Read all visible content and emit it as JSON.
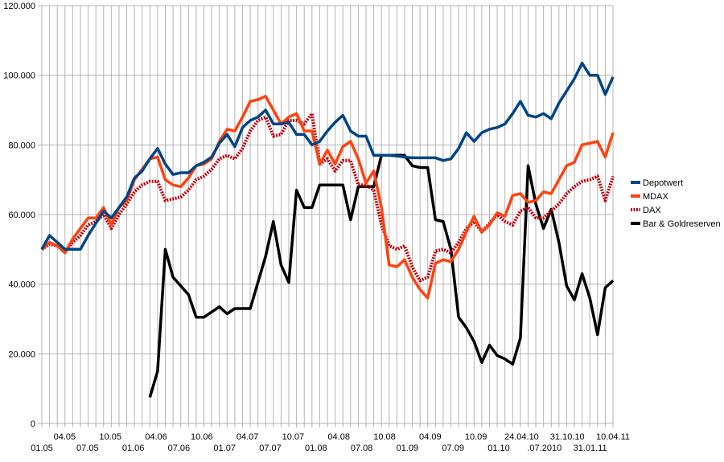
{
  "chart_data": {
    "type": "line",
    "title": "",
    "xlabel": "",
    "ylabel": "",
    "ylim": [
      0,
      120000
    ],
    "yticks": [
      0,
      20000,
      40000,
      60000,
      80000,
      100000,
      120000
    ],
    "ytick_labels": [
      "0",
      "20.000",
      "40.000",
      "60.000",
      "80.000",
      "100.000",
      "120.000"
    ],
    "grid": true,
    "legend_position": "right",
    "n_points": 75,
    "x_labels_upper": [
      "04.05",
      "10.05",
      "04.06",
      "10.06",
      "04.07",
      "10.07",
      "04.08",
      "10.08",
      "04.09",
      "10.09",
      "24.04.10",
      "31.10.10",
      "10.04.11"
    ],
    "x_labels_lower": [
      "01.05",
      "07.05",
      "01.06",
      "07.06",
      "01.07",
      "07.07",
      "01.08",
      "07.08",
      "01.09",
      "07.09",
      "01.10",
      ".07.2010",
      "31.01.11"
    ],
    "series": [
      {
        "name": "Depotwert",
        "color": "#004586",
        "dashed": false,
        "values": [
          50000,
          54000,
          52000,
          50000,
          50000,
          50000,
          54000,
          57500,
          61000,
          59000,
          62000,
          65000,
          70500,
          72500,
          76000,
          79000,
          74500,
          71500,
          72000,
          72000,
          74000,
          75000,
          76500,
          80500,
          83000,
          79500,
          85000,
          87000,
          88000,
          90000,
          86000,
          86000,
          86500,
          83000,
          83000,
          80000,
          81000,
          84000,
          86500,
          88500,
          84000,
          82500,
          82500,
          77000,
          77000,
          77000,
          76800,
          76500,
          76300,
          76300,
          76300,
          76300,
          75500,
          76000,
          79000,
          83500,
          81000,
          83500,
          84500,
          85000,
          86000,
          89000,
          92500,
          88500,
          88000,
          89000,
          87500,
          92000,
          95500,
          99000,
          103500,
          100000,
          100000,
          94500,
          99500
        ]
      },
      {
        "name": "MDAX",
        "color": "#ff420e",
        "dashed": false,
        "values": [
          50000,
          52000,
          51000,
          49000,
          53000,
          56000,
          59000,
          59000,
          62000,
          57000,
          62000,
          64000,
          70000,
          73000,
          76000,
          76500,
          70000,
          68500,
          68000,
          70500,
          74000,
          74500,
          76000,
          81000,
          84500,
          84000,
          88000,
          92500,
          93000,
          94000,
          90000,
          86000,
          88000,
          89000,
          84000,
          84000,
          74500,
          78500,
          74500,
          79500,
          81000,
          76000,
          69000,
          72500,
          62000,
          45500,
          45000,
          47000,
          42000,
          38500,
          36000,
          46000,
          47000,
          46500,
          50000,
          55000,
          59500,
          55000,
          57000,
          60500,
          59500,
          65500,
          66000,
          63500,
          64000,
          66500,
          66000,
          70000,
          74000,
          75000,
          80000,
          80500,
          81000,
          76500,
          83500
        ]
      },
      {
        "name": "DAX",
        "color": "#c5000b",
        "dashed": true,
        "values": [
          50000,
          51500,
          51000,
          49500,
          52000,
          54000,
          57000,
          58000,
          60000,
          56000,
          60000,
          63000,
          66500,
          68500,
          69500,
          69500,
          64000,
          64500,
          65000,
          67000,
          70000,
          71000,
          73000,
          76000,
          77000,
          76000,
          79000,
          84000,
          87000,
          88000,
          82500,
          83000,
          87000,
          87000,
          86000,
          89000,
          74500,
          76000,
          72500,
          75500,
          75500,
          68500,
          68500,
          67000,
          57000,
          51000,
          50000,
          51000,
          45000,
          41000,
          42000,
          49500,
          50000,
          49000,
          52000,
          56000,
          58000,
          55000,
          57500,
          60000,
          58000,
          57000,
          61000,
          62000,
          59000,
          59000,
          61000,
          63000,
          66000,
          68000,
          69500,
          70000,
          71000,
          64000,
          71000
        ]
      },
      {
        "name": "Bar & Goldreserven",
        "color": "#000000",
        "dashed": false,
        "values": [
          null,
          null,
          null,
          null,
          null,
          null,
          null,
          null,
          null,
          null,
          null,
          null,
          null,
          null,
          7500,
          15000,
          50000,
          42000,
          39500,
          37000,
          30500,
          30500,
          32000,
          33500,
          31500,
          33000,
          33000,
          33000,
          40500,
          48000,
          58000,
          45500,
          40500,
          67000,
          62000,
          62000,
          68500,
          68500,
          68500,
          68500,
          58500,
          68000,
          68000,
          68000,
          77000,
          77000,
          77000,
          77000,
          74000,
          73500,
          73500,
          58500,
          58000,
          50000,
          30500,
          27500,
          23500,
          17500,
          22500,
          19500,
          18500,
          17000,
          24500,
          74000,
          63000,
          56000,
          61500,
          52000,
          39500,
          35500,
          43000,
          36000,
          25500,
          39000,
          41000
        ]
      }
    ]
  }
}
